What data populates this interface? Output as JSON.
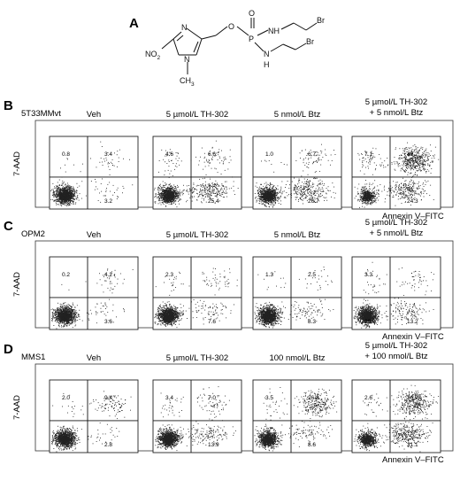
{
  "panelA": {
    "letter": "A",
    "atoms": {
      "N_top": "N",
      "N_ring": "N",
      "NO2": "NO",
      "NO2_sub": "2",
      "CH3": "CH",
      "CH3_sub": "3",
      "O_link": "O",
      "P": "P",
      "O_dbl": "O",
      "NH_top": "NH",
      "NH_bot": "N",
      "H_bot": "H",
      "Br1": "Br",
      "Br2": "Br"
    }
  },
  "xaxis_label": "Annexin V–FITC",
  "yaxis_label": "7-AAD",
  "panels": [
    {
      "letter": "B",
      "cell_line": "5T33MMvt",
      "conditions": [
        "Veh",
        "5 µmol/L TH-302",
        "5 nmol/L Btz",
        "5 µmol/L TH-302\n+ 5 nmol/L Btz"
      ],
      "plots": [
        {
          "ul": "0.8",
          "ur": "3.4",
          "ll": "",
          "lr": "3.2"
        },
        {
          "ul": "4.6",
          "ur": "6.6",
          "ll": "",
          "lr": "25.4"
        },
        {
          "ul": "1.0",
          "ur": "6.7",
          "ll": "",
          "lr": "26.7"
        },
        {
          "ul": "7.1",
          "ur": "49.2",
          "ll": "",
          "lr": "24.3"
        }
      ]
    },
    {
      "letter": "C",
      "cell_line": "OPM2",
      "conditions": [
        "Veh",
        "5 µmol/L TH-302",
        "5 nmol/L Btz",
        "5 µmol/L TH-302\n+ 5 nmol/L Btz"
      ],
      "plots": [
        {
          "ul": "0.2",
          "ur": "4.2",
          "ll": "",
          "lr": "3.6"
        },
        {
          "ul": "2.3",
          "ur": "",
          "ll": "",
          "lr": "7.6"
        },
        {
          "ul": "1.3",
          "ur": "2.5",
          "ll": "",
          "lr": "8.3"
        },
        {
          "ul": "3.3",
          "ur": "",
          "ll": "29.9",
          "lr": "13.2"
        }
      ]
    },
    {
      "letter": "D",
      "cell_line": "MMS1",
      "conditions": [
        "Veh",
        "5 µmol/L TH-302",
        "100 nmol/L Btz",
        "5 µmol/L TH-302\n+ 100 nmol/L Btz"
      ],
      "plots": [
        {
          "ul": "2.0",
          "ur": "9.4",
          "ll": "",
          "lr": "2.8"
        },
        {
          "ul": "3.4",
          "ur": "7.0",
          "ll": "",
          "lr": "13.9"
        },
        {
          "ul": "3.5",
          "ur": "26.8",
          "ll": "",
          "lr": "8.6"
        },
        {
          "ul": "2.6",
          "ur": "36.9",
          "ll": "",
          "lr": "31.1"
        }
      ]
    }
  ]
}
